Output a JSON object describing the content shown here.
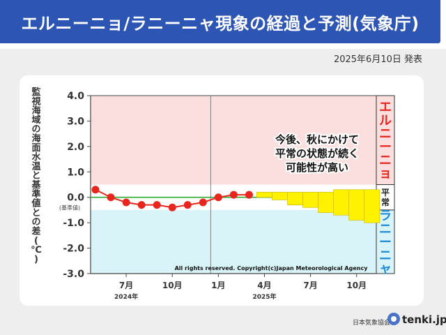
{
  "header": {
    "title": "エルニーニョ/ラニーニャ現象の経過と予測(気象庁)",
    "announce_date": "2025年6月10日 発表"
  },
  "footer": {
    "org": "日本気象協会",
    "brand": "tenki.jp"
  },
  "colors": {
    "title_bg": "#2d55b3",
    "elnino_zone": "#fbdede",
    "normal_zone": "#ffffff",
    "lanina_zone": "#d8f4f8",
    "observed": "#e8261e",
    "zero_line": "#2eab2e",
    "forecast_bar": "#fff200",
    "forecast_border": "#d2be00",
    "elnino_text": "#e8261e",
    "lanina_text": "#1f8ad6"
  },
  "chart_data": {
    "type": "line",
    "ylabel": "監視海域の海面水温と基準値との差(℃)",
    "ylim": [
      -3.0,
      4.0
    ],
    "yticks": [
      "4.0",
      "3.0",
      "2.0",
      "1.0",
      "0.0",
      "-1.0",
      "-2.0",
      "-3.0"
    ],
    "zero_sublabel": "(基準値)",
    "x_ticks": [
      {
        "label": "7月",
        "year": "2024年"
      },
      {
        "label": "10月",
        "year": ""
      },
      {
        "label": "1月",
        "year": ""
      },
      {
        "label": "4月",
        "year": "2025年"
      },
      {
        "label": "7月",
        "year": ""
      },
      {
        "label": "10月",
        "year": ""
      }
    ],
    "observed": {
      "months": [
        "2024-05",
        "2024-06",
        "2024-07",
        "2024-08",
        "2024-09",
        "2024-10",
        "2024-11",
        "2024-12",
        "2025-01",
        "2025-02",
        "2025-03"
      ],
      "values": [
        0.3,
        0.0,
        -0.2,
        -0.3,
        -0.3,
        -0.4,
        -0.3,
        -0.2,
        0.0,
        0.1,
        0.1
      ]
    },
    "forecast": {
      "months": [
        "2025-04",
        "2025-05",
        "2025-06",
        "2025-07",
        "2025-08",
        "2025-09",
        "2025-10",
        "2025-11"
      ],
      "upper": [
        0.2,
        0.2,
        0.2,
        0.2,
        0.2,
        0.3,
        0.3,
        0.3
      ],
      "lower": [
        0.0,
        -0.1,
        -0.3,
        -0.4,
        -0.6,
        -0.7,
        -0.9,
        -1.0
      ]
    },
    "zones": [
      {
        "name": "エルニーニョ",
        "from": 0.5,
        "to": 4.0
      },
      {
        "name": "平常",
        "from": -0.5,
        "to": 0.5
      },
      {
        "name": "ラニーニャ",
        "from": -3.0,
        "to": -0.5
      }
    ],
    "annotation": [
      "今後、秋にかけて",
      "平常の状態が続く",
      "可能性が高い"
    ],
    "copyright": "All rights reserved. Copyright(c)Japan Meteorological Agency",
    "grid": false
  }
}
